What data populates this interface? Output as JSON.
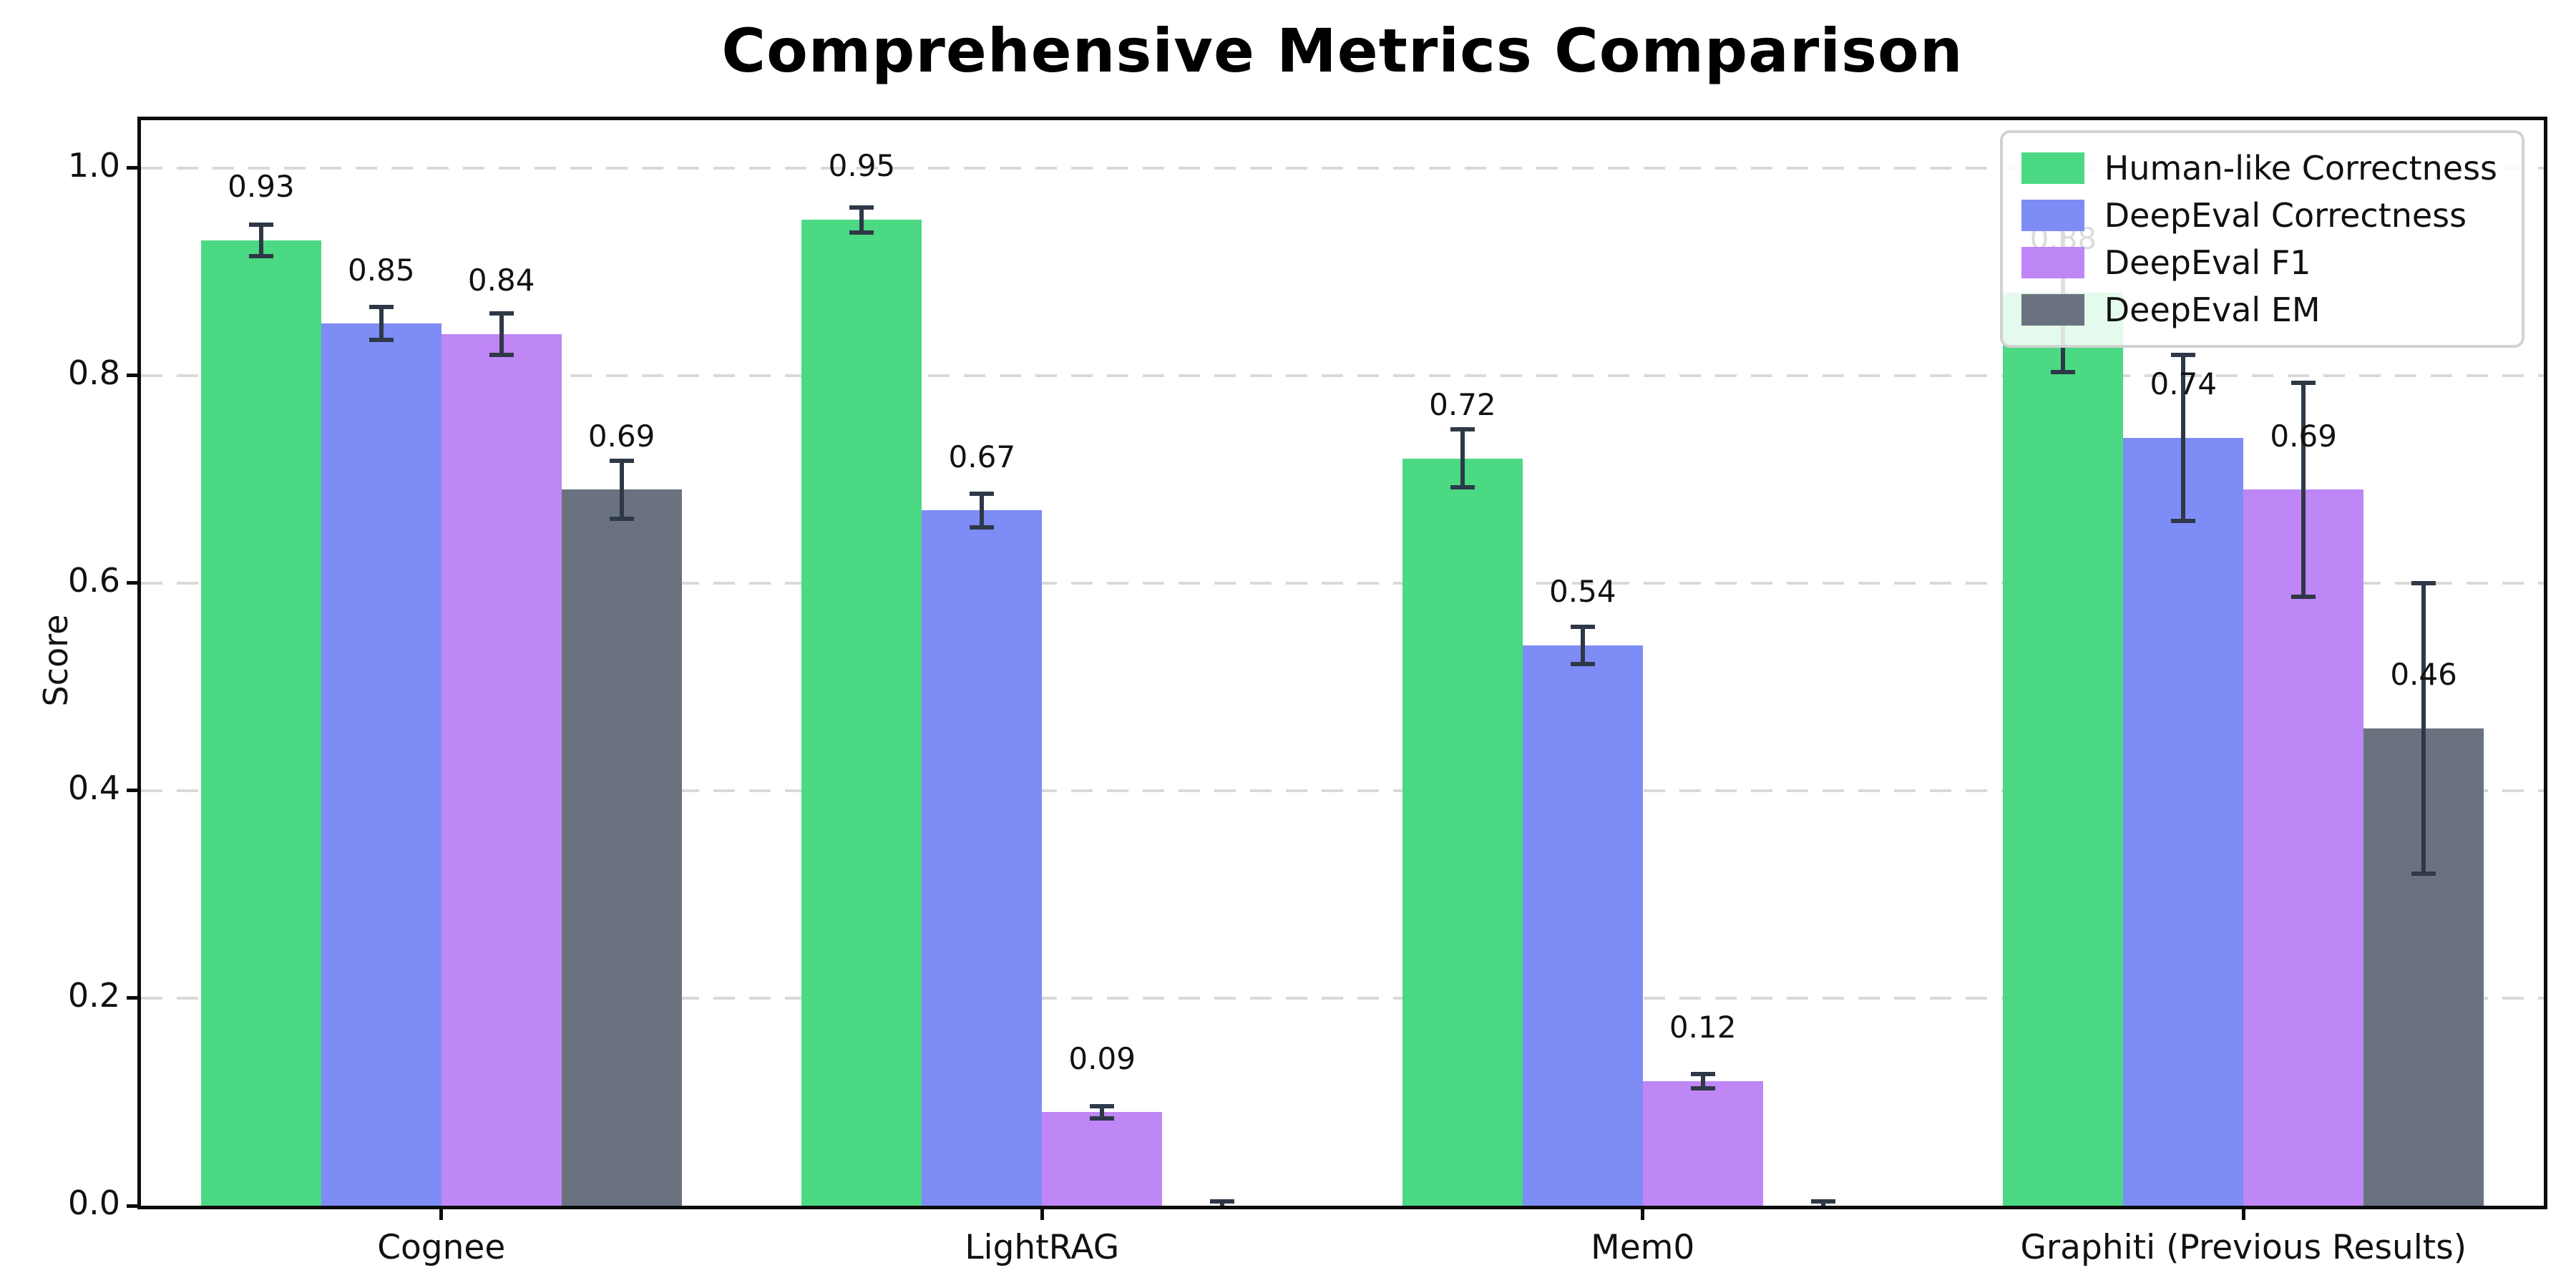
{
  "title": "Comprehensive Metrics Comparison",
  "y_axis": {
    "label": "Score",
    "tick_labels": [
      "0.0",
      "0.2",
      "0.4",
      "0.6",
      "0.8",
      "1.0"
    ]
  },
  "x_axis": {
    "tick_labels": [
      "Cognee",
      "LightRAG",
      "Mem0",
      "Graphiti (Previous Results)"
    ]
  },
  "legend": {
    "position": "upper right",
    "entries": [
      "Human-like Correctness",
      "DeepEval Correctness",
      "DeepEval F1",
      "DeepEval EM"
    ]
  },
  "colors": {
    "human_like_correctness": "#4bd983",
    "deepeval_correctness": "#7e8cf5",
    "deepeval_f1": "#bf86f5",
    "deepeval_em": "#6a7280",
    "error_bar": "#2e3847",
    "gridline": "#d9d9d9",
    "spine": "#0c0c0c"
  },
  "chart_data": {
    "type": "bar",
    "title": "Comprehensive Metrics Comparison",
    "xlabel": "",
    "ylabel": "Score",
    "categories": [
      "Cognee",
      "LightRAG",
      "Mem0",
      "Graphiti (Previous Results)"
    ],
    "series": [
      {
        "name": "Human-like Correctness",
        "color": "#4bd983",
        "values": [
          0.93,
          0.95,
          0.72,
          0.88
        ],
        "errors": [
          0.015,
          0.012,
          0.028,
          0.077
        ],
        "labels": [
          "0.93",
          "0.95",
          "0.72",
          "0.88"
        ]
      },
      {
        "name": "DeepEval Correctness",
        "color": "#7e8cf5",
        "values": [
          0.85,
          0.67,
          0.54,
          0.74
        ],
        "errors": [
          0.016,
          0.016,
          0.018,
          0.08
        ],
        "labels": [
          "0.85",
          "0.67",
          "0.54",
          "0.74"
        ]
      },
      {
        "name": "DeepEval F1",
        "color": "#bf86f5",
        "values": [
          0.84,
          0.09,
          0.12,
          0.69
        ],
        "errors": [
          0.02,
          0.006,
          0.007,
          0.103
        ],
        "labels": [
          "0.84",
          "0.09",
          "0.12",
          "0.69"
        ]
      },
      {
        "name": "DeepEval EM",
        "color": "#6a7280",
        "values": [
          0.69,
          0.0,
          0.0,
          0.46
        ],
        "errors": [
          0.028,
          0.004,
          0.004,
          0.14
        ],
        "labels": [
          "0.69",
          null,
          null,
          "0.46"
        ]
      }
    ],
    "ylim": [
      0,
      1.046
    ],
    "yticks": [
      0.0,
      0.2,
      0.4,
      0.6,
      0.8,
      1.0
    ],
    "grid": "horizontal dashed",
    "group_width_fraction": 0.8,
    "legend_position": "upper right"
  }
}
